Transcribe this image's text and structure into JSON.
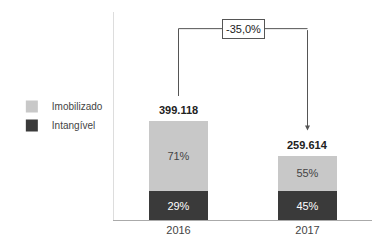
{
  "chart_data": {
    "type": "bar",
    "stacked": true,
    "categories": [
      "2016",
      "2017"
    ],
    "series": [
      {
        "name": "Intangível",
        "color": "#3a3a3a",
        "values": [
          115744.22,
          116826.3
        ],
        "share_labels": [
          "29%",
          "45%"
        ]
      },
      {
        "name": "Imobilizado",
        "color": "#c8c8c8",
        "values": [
          283373.78,
          142787.7
        ],
        "share_labels": [
          "71%",
          "55%"
        ]
      }
    ],
    "totals": [
      399118,
      259614
    ],
    "total_labels": [
      "399.118",
      "259.614"
    ],
    "change_label": "-35,0%",
    "ylim": [
      0,
      838147.8
    ],
    "yticks": [],
    "tick_labels": "x",
    "grid": false,
    "legend": "left"
  }
}
